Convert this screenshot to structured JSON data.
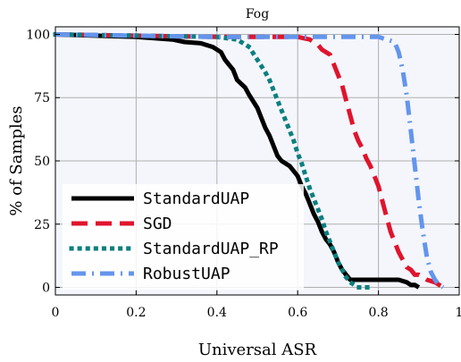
{
  "chart_data": {
    "type": "line",
    "title": "Fog",
    "xlabel": "Universal ASR",
    "ylabel": "% of Samples",
    "xlim": [
      0,
      1
    ],
    "ylim": [
      -3,
      103
    ],
    "xticks": [
      0,
      0.2,
      0.4,
      0.6,
      0.8,
      1
    ],
    "xtick_labels": [
      "0",
      "0.2",
      "0.4",
      "0.6",
      "0.8",
      "1"
    ],
    "yticks": [
      0,
      25,
      50,
      75,
      100
    ],
    "ytick_labels": [
      "0",
      "25",
      "50",
      "75",
      "100"
    ],
    "grid": true,
    "legend_position": "lower-left",
    "plot_background": "#f4f6fc",
    "series": [
      {
        "name": "StandardUAP",
        "color": "#000000",
        "style": "solid",
        "x": [
          0.0,
          0.1,
          0.2,
          0.29,
          0.32,
          0.36,
          0.39,
          0.41,
          0.42,
          0.44,
          0.45,
          0.47,
          0.48,
          0.5,
          0.51,
          0.52,
          0.53,
          0.54,
          0.55,
          0.56,
          0.58,
          0.6,
          0.61,
          0.62,
          0.63,
          0.64,
          0.65,
          0.66,
          0.67,
          0.68,
          0.69,
          0.7,
          0.71,
          0.72,
          0.73,
          0.75,
          0.78,
          0.8,
          0.83,
          0.85,
          0.87,
          0.88,
          0.89,
          0.9
        ],
        "y": [
          100,
          99.5,
          99,
          98,
          97,
          96.5,
          95,
          93,
          90,
          86,
          82,
          79,
          76,
          71,
          67,
          63,
          60,
          56,
          52,
          50,
          48,
          44,
          40,
          37,
          33,
          29,
          26,
          22,
          19,
          17,
          14,
          10,
          7,
          5,
          3,
          3,
          3,
          3,
          3,
          3,
          2,
          1,
          1,
          0
        ]
      },
      {
        "name": "SGD",
        "color": "#e0142d",
        "style": "dashed",
        "x": [
          0.0,
          0.2,
          0.4,
          0.6,
          0.63,
          0.65,
          0.66,
          0.68,
          0.69,
          0.7,
          0.71,
          0.72,
          0.73,
          0.74,
          0.75,
          0.76,
          0.77,
          0.78,
          0.79,
          0.8,
          0.81,
          0.82,
          0.83,
          0.84,
          0.85,
          0.86,
          0.87,
          0.88,
          0.89,
          0.9,
          0.92,
          0.94,
          0.96
        ],
        "y": [
          100,
          99.5,
          99,
          99,
          98,
          96,
          94,
          92,
          88,
          84,
          80,
          74,
          68,
          62,
          58,
          55,
          51,
          48,
          44,
          40,
          34,
          28,
          22,
          18,
          14,
          11,
          8,
          7,
          5,
          5,
          3,
          2,
          0
        ]
      },
      {
        "name": "StandardUAP_RP",
        "color": "#0b7f7f",
        "style": "dotted",
        "x": [
          0.0,
          0.2,
          0.4,
          0.45,
          0.48,
          0.5,
          0.52,
          0.53,
          0.54,
          0.55,
          0.56,
          0.57,
          0.58,
          0.59,
          0.6,
          0.61,
          0.62,
          0.63,
          0.64,
          0.65,
          0.66,
          0.67,
          0.68,
          0.69,
          0.7,
          0.71,
          0.72,
          0.73,
          0.74,
          0.75,
          0.76,
          0.78
        ],
        "y": [
          100,
          99.5,
          99,
          98,
          95,
          90,
          85,
          82,
          78,
          74,
          70,
          66,
          62,
          58,
          53,
          49,
          44,
          39,
          35,
          31,
          27,
          22,
          18,
          14,
          10,
          7,
          4,
          2,
          1,
          0,
          0,
          0
        ]
      },
      {
        "name": "RobustUAP",
        "color": "#6495ed",
        "style": "dashdot",
        "x": [
          0.0,
          0.2,
          0.4,
          0.6,
          0.8,
          0.84,
          0.85,
          0.86,
          0.87,
          0.88,
          0.89,
          0.9,
          0.91,
          0.92,
          0.93,
          0.94,
          0.95,
          0.96
        ],
        "y": [
          100,
          99.5,
          99,
          99,
          99,
          97,
          93,
          86,
          76,
          62,
          48,
          34,
          22,
          12,
          6,
          3,
          1,
          0
        ]
      }
    ]
  }
}
